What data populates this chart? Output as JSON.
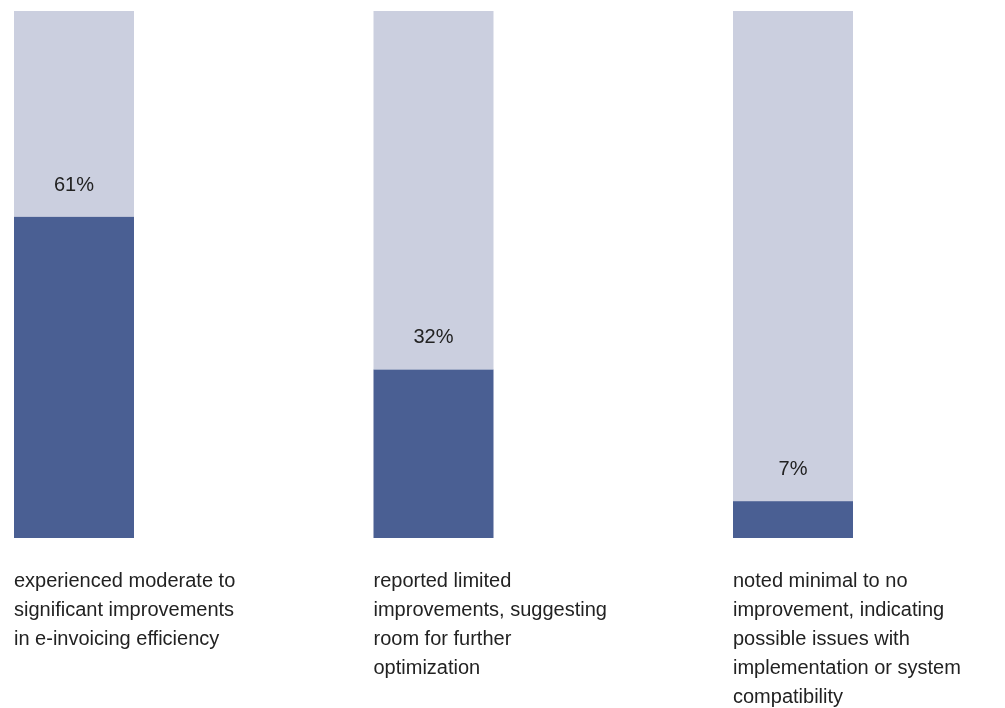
{
  "chart_data": {
    "type": "bar",
    "stacked": true,
    "categories": [
      "experienced moderate to significant improvements in e-invoicing efficiency",
      "reported limited improvements, suggesting room for further optimization",
      "noted minimal to no improvement, indicating possible issues with implementation or system compatibility"
    ],
    "series": [
      {
        "color": "#4a5f93",
        "values": [
          61,
          32,
          7
        ],
        "value_labels": [
          "61%",
          "32%",
          "7%"
        ]
      },
      {
        "color": "#cbcfdf",
        "values": [
          39,
          68,
          93
        ]
      }
    ],
    "ylim": [
      0,
      100
    ]
  }
}
